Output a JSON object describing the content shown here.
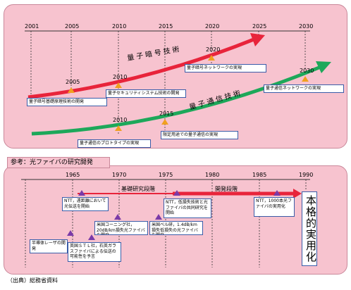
{
  "top": {
    "years": [
      "2001",
      "2005",
      "2010",
      "2015",
      "2020",
      "2025",
      "2030"
    ],
    "crypto_title": "量子暗号技術",
    "comm_title": "量子通信技術",
    "crypto_marks": [
      "2005",
      "2010",
      "2020"
    ],
    "comm_marks": [
      "2010",
      "2015",
      "2030"
    ],
    "crypto_boxes": [
      "量子暗号基礎原理技術の開発",
      "量子セキュリティシステム技術の開発",
      "量子暗号ネットワークの実現"
    ],
    "comm_boxes": [
      "量子通信のプロトタイプの実現",
      "限定用途での量子通信の実現",
      "量子通信ネットワークの実現"
    ]
  },
  "reference_label": "参考：光ファイバの研究開発",
  "bottom": {
    "years": [
      "1965",
      "1970",
      "1975",
      "1980",
      "1985",
      "1990"
    ],
    "phase1": "基礎研究段階",
    "phase2": "開発段階",
    "boxes": [
      "NTT，遠距離において光伝送を開始",
      "NTT，低損失技術と光ファイバの共同研究を開始",
      "NTT，1000本光ファイバの実用化",
      "米国コーニング社，20dB/km損失光ファイバを開発",
      "米国ベル研，1.4dB/km損失低損失の光ファイバを開発",
      "半導体レーザの開発",
      "英国ＳＴＬ社，石英ガラスファイバによる伝送の可能性を予言"
    ],
    "final": "本格的実用化"
  },
  "source": "（出典）総務省資料",
  "colors": {
    "crypto_arrow": "#e8243b",
    "comm_arrow": "#1da85a",
    "phase_arrow": "#e8243b",
    "marker": "#f0a020",
    "panel": "#f7c3cf"
  }
}
